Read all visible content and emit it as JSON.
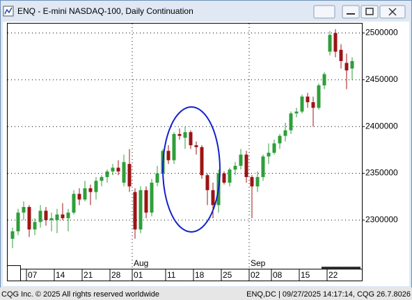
{
  "chart_data": {
    "type": "candlestick",
    "title": "ENQ - E-mini NASDAQ-100, Daily Continuation",
    "categories": [
      null,
      null,
      null,
      "07",
      null,
      null,
      null,
      null,
      "14",
      null,
      null,
      null,
      null,
      "21",
      null,
      null,
      null,
      null,
      "28",
      null,
      null,
      null,
      "01",
      null,
      null,
      null,
      null,
      null,
      "11",
      null,
      null,
      null,
      null,
      "18",
      null,
      null,
      null,
      null,
      "25",
      null,
      null,
      null,
      null,
      "02",
      null,
      null,
      null,
      "08",
      null,
      null,
      null,
      null,
      "15",
      null,
      null,
      null,
      null,
      "22",
      null,
      null,
      null,
      null
    ],
    "months": [
      "Aug",
      "Sep"
    ],
    "open": [
      2280000,
      2288000,
      2308000,
      2314000,
      2290000,
      2298000,
      2310000,
      2300000,
      2300000,
      2306000,
      2302000,
      2308000,
      2328000,
      2322000,
      2334000,
      2330000,
      2342000,
      2346000,
      2352000,
      2356000,
      2340000,
      2360000,
      2330000,
      2290000,
      2332000,
      2308000,
      2340000,
      2350000,
      2374000,
      2364000,
      2392000,
      2388000,
      2394000,
      2380000,
      2378000,
      2348000,
      2332000,
      2316000,
      2350000,
      2340000,
      2354000,
      2358000,
      2370000,
      2346000,
      2336000,
      2346000,
      2368000,
      2372000,
      2382000,
      2390000,
      2396000,
      2414000,
      2416000,
      2432000,
      2426000,
      2420000,
      2444000,
      2480000,
      2500000,
      2482000,
      2468000,
      2462000
    ],
    "high": [
      2292000,
      2312000,
      2320000,
      2316000,
      2302000,
      2316000,
      2314000,
      2308000,
      2312000,
      2318000,
      2312000,
      2332000,
      2334000,
      2342000,
      2338000,
      2346000,
      2348000,
      2354000,
      2360000,
      2364000,
      2370000,
      2376000,
      2334000,
      2336000,
      2336000,
      2344000,
      2358000,
      2376000,
      2380000,
      2394000,
      2398000,
      2400000,
      2396000,
      2384000,
      2380000,
      2350000,
      2340000,
      2354000,
      2352000,
      2356000,
      2362000,
      2376000,
      2374000,
      2348000,
      2352000,
      2370000,
      2382000,
      2386000,
      2392000,
      2404000,
      2416000,
      2420000,
      2434000,
      2436000,
      2432000,
      2446000,
      2458000,
      2502000,
      2504000,
      2488000,
      2478000,
      2474000
    ],
    "low": [
      2270000,
      2284000,
      2300000,
      2282000,
      2284000,
      2292000,
      2294000,
      2288000,
      2286000,
      2300000,
      2288000,
      2306000,
      2316000,
      2320000,
      2316000,
      2322000,
      2336000,
      2340000,
      2348000,
      2348000,
      2336000,
      2330000,
      2280000,
      2286000,
      2302000,
      2304000,
      2336000,
      2346000,
      2360000,
      2360000,
      2386000,
      2376000,
      2376000,
      2370000,
      2344000,
      2316000,
      2302000,
      2308000,
      2338000,
      2336000,
      2348000,
      2354000,
      2340000,
      2302000,
      2330000,
      2342000,
      2360000,
      2370000,
      2376000,
      2384000,
      2392000,
      2410000,
      2414000,
      2420000,
      2400000,
      2418000,
      2440000,
      2476000,
      2474000,
      2462000,
      2440000,
      2450000
    ],
    "close": [
      2288000,
      2308000,
      2314000,
      2290000,
      2298000,
      2310000,
      2300000,
      2302000,
      2306000,
      2302000,
      2308000,
      2328000,
      2322000,
      2334000,
      2330000,
      2342000,
      2346000,
      2352000,
      2356000,
      2352000,
      2362000,
      2336000,
      2290000,
      2332000,
      2308000,
      2340000,
      2350000,
      2374000,
      2364000,
      2392000,
      2390000,
      2394000,
      2380000,
      2378000,
      2348000,
      2332000,
      2316000,
      2350000,
      2340000,
      2354000,
      2358000,
      2370000,
      2346000,
      2336000,
      2346000,
      2368000,
      2372000,
      2382000,
      2390000,
      2396000,
      2414000,
      2416000,
      2432000,
      2426000,
      2420000,
      2444000,
      2456000,
      2498000,
      2480000,
      2470000,
      2460000,
      2470000
    ],
    "up_color": "#2f9e3a",
    "down_color": "#9c1414",
    "ylim": [
      2248000,
      2510000
    ],
    "yticks": [
      2300000,
      2350000,
      2400000,
      2450000,
      2500000
    ],
    "grid": true
  },
  "footer": {
    "left": "CQG Inc. © 2025 All rights reserved worldwide",
    "right": "ENQ,DC | 09/27/2025 14:17:14, CQG 26.7.8026"
  }
}
